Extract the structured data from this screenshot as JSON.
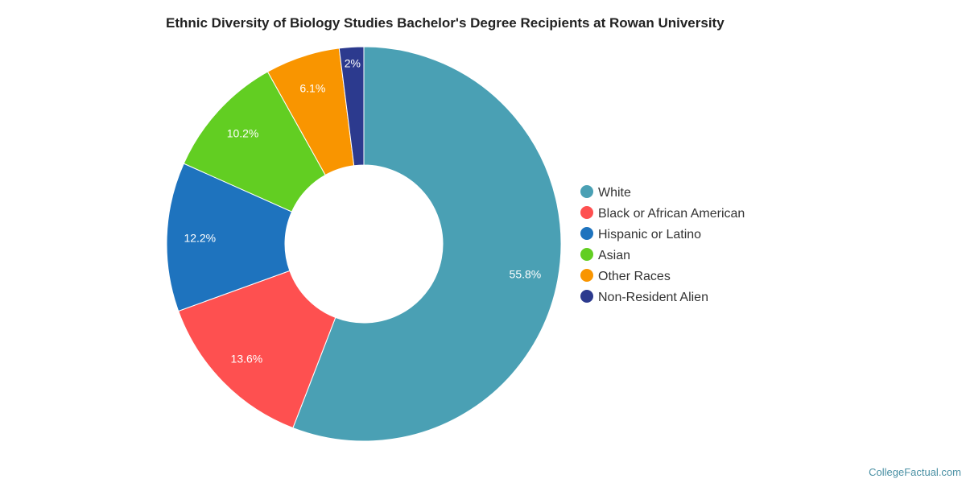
{
  "watermark": "CollegeFactual.com",
  "chart_data": {
    "type": "pie",
    "donut": true,
    "title": "Ethnic Diversity of Biology Studies Bachelor's Degree Recipients at Rowan University",
    "legend_position": "right",
    "slices": [
      {
        "name": "White",
        "value": 55.8,
        "label": "55.8%",
        "color": "#4aa0b4"
      },
      {
        "name": "Black or African American",
        "value": 13.6,
        "label": "13.6%",
        "color": "#fe5050"
      },
      {
        "name": "Hispanic or Latino",
        "value": 12.2,
        "label": "12.2%",
        "color": "#1e73be"
      },
      {
        "name": "Asian",
        "value": 10.2,
        "label": "10.2%",
        "color": "#62ce22"
      },
      {
        "name": "Other Races",
        "value": 6.1,
        "label": "6.1%",
        "color": "#f99500"
      },
      {
        "name": "Non-Resident Alien",
        "value": 2.0,
        "label": "2%",
        "color": "#2c3a8e"
      }
    ]
  }
}
